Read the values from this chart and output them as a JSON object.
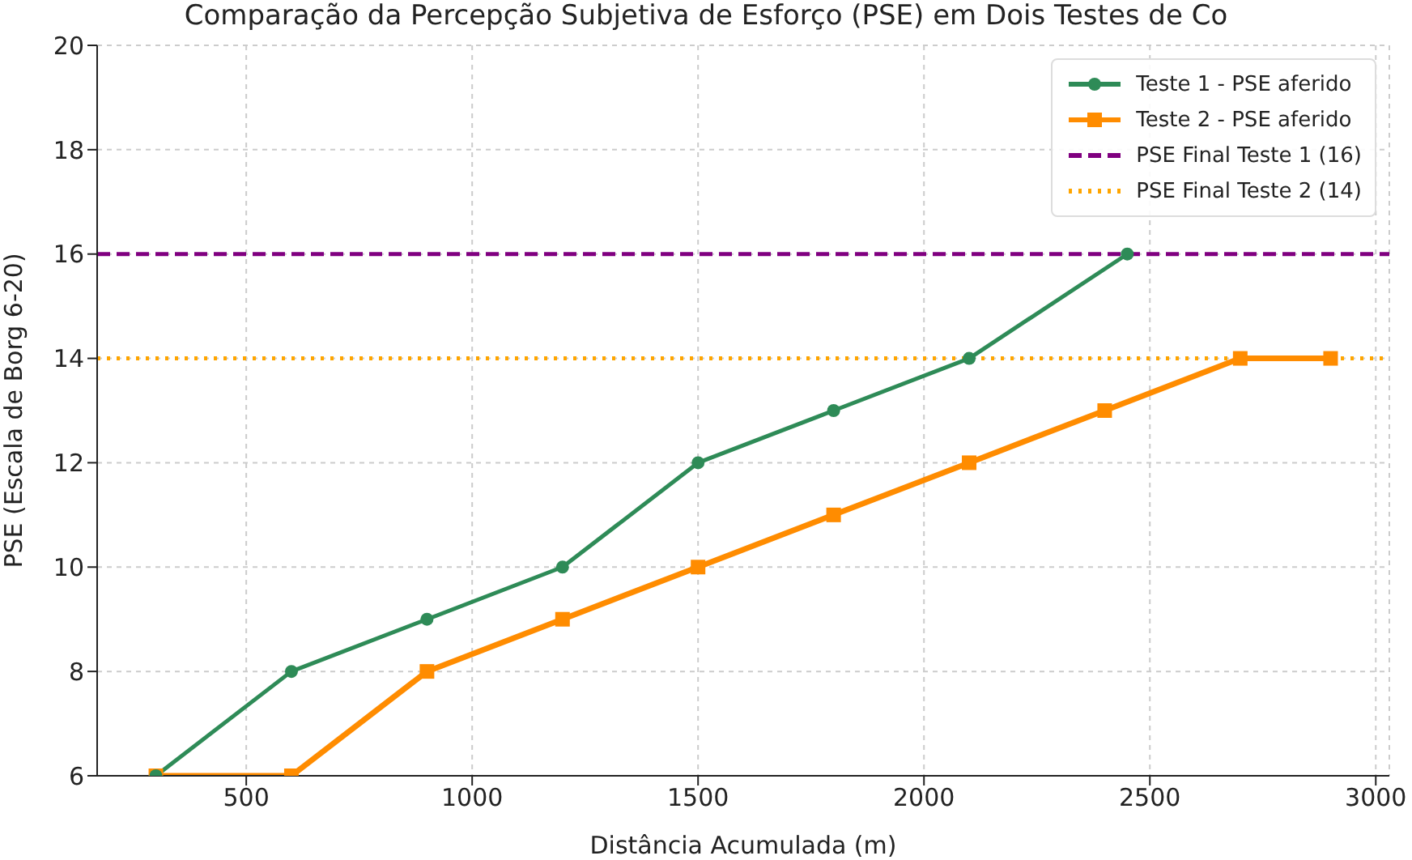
{
  "chart_data": {
    "type": "line",
    "title": "Comparação da Percepção Subjetiva de Esforço (PSE) em Dois Testes de Co",
    "xlabel": "Distância Acumulada (m)",
    "ylabel": "PSE (Escala de Borg 6-20)",
    "xlim": [
      170,
      3030
    ],
    "xticks": [
      500,
      1000,
      1500,
      2000,
      2500,
      3000
    ],
    "ylim": [
      6,
      20
    ],
    "yticks": [
      6,
      8,
      10,
      12,
      14,
      16,
      18,
      20
    ],
    "grid": true,
    "legend": "top right",
    "series": [
      {
        "name": "Teste 1 - PSE aferido",
        "color": "#2e8b57",
        "marker": "circle",
        "x": [
          300,
          600,
          900,
          1200,
          1500,
          1800,
          2100,
          2450
        ],
        "values": [
          6,
          8,
          9,
          10,
          12,
          13,
          14,
          16
        ]
      },
      {
        "name": "Teste 2 - PSE aferido",
        "color": "#ff8c00",
        "marker": "square",
        "x": [
          300,
          600,
          900,
          1200,
          1500,
          1800,
          2100,
          2400,
          2700,
          2900
        ],
        "values": [
          6,
          6,
          8,
          9,
          10,
          11,
          12,
          13,
          14,
          14
        ]
      }
    ],
    "ref_lines": [
      {
        "axis": "y",
        "value": 16,
        "label": "PSE Final Teste 1 (16)",
        "color": "#800080",
        "line_style": "dashed"
      },
      {
        "axis": "y",
        "value": 14,
        "label": "PSE Final Teste 2 (14)",
        "color": "#ffa500",
        "line_style": "dotted"
      }
    ]
  }
}
